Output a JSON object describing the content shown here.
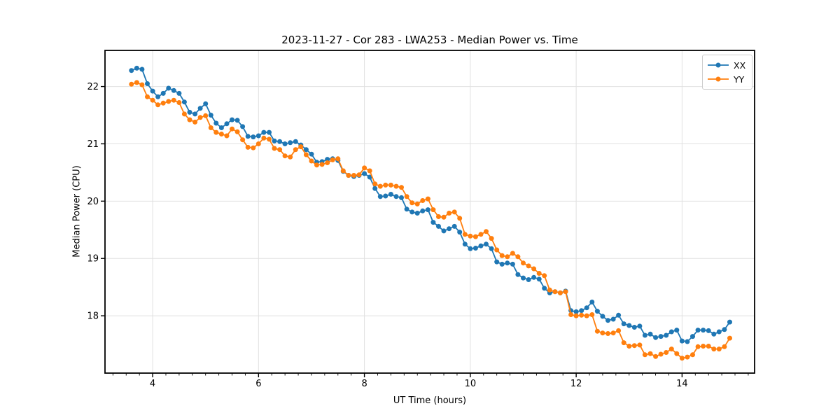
{
  "chart_data": {
    "type": "line",
    "title": "2023-11-27 - Cor 283 - LWA253 - Median Power vs. Time",
    "xlabel": "UT Time (hours)",
    "ylabel": "Median Power (CPU)",
    "xlim": [
      3.1,
      15.37
    ],
    "ylim": [
      17.0,
      22.63
    ],
    "xticks": [
      4,
      6,
      8,
      10,
      12,
      14
    ],
    "yticks": [
      18,
      19,
      20,
      21,
      22
    ],
    "x_minor_tick_interval": 0.25,
    "grid": true,
    "legend_position": "upper right",
    "x": [
      3.6,
      3.7,
      3.8,
      3.9,
      4.0,
      4.1,
      4.2,
      4.3,
      4.4,
      4.5,
      4.6,
      4.7,
      4.8,
      4.9,
      5.0,
      5.1,
      5.2,
      5.3,
      5.4,
      5.5,
      5.6,
      5.7,
      5.8,
      5.9,
      6.0,
      6.1,
      6.2,
      6.3,
      6.4,
      6.5,
      6.6,
      6.7,
      6.8,
      6.9,
      7.0,
      7.1,
      7.2,
      7.3,
      7.4,
      7.5,
      7.6,
      7.7,
      7.8,
      7.9,
      8.0,
      8.1,
      8.2,
      8.3,
      8.4,
      8.5,
      8.6,
      8.7,
      8.8,
      8.9,
      9.0,
      9.1,
      9.2,
      9.3,
      9.4,
      9.5,
      9.6,
      9.7,
      9.8,
      9.9,
      10.0,
      10.1,
      10.2,
      10.3,
      10.4,
      10.5,
      10.6,
      10.7,
      10.8,
      10.9,
      11.0,
      11.1,
      11.2,
      11.3,
      11.4,
      11.5,
      11.6,
      11.7,
      11.8,
      11.9,
      12.0,
      12.1,
      12.2,
      12.3,
      12.4,
      12.5,
      12.6,
      12.7,
      12.8,
      12.9,
      13.0,
      13.1,
      13.2,
      13.3,
      13.4,
      13.5,
      13.6,
      13.7,
      13.8,
      13.9,
      14.0,
      14.1,
      14.2,
      14.3,
      14.4,
      14.5,
      14.6,
      14.7,
      14.8,
      14.9
    ],
    "series": [
      {
        "name": "XX",
        "color": "#1f77b4",
        "values": [
          22.28,
          22.32,
          22.3,
          22.05,
          21.92,
          21.82,
          21.88,
          21.97,
          21.93,
          21.88,
          21.73,
          21.55,
          21.52,
          21.62,
          21.7,
          21.5,
          21.36,
          21.28,
          21.35,
          21.42,
          21.41,
          21.3,
          21.13,
          21.12,
          21.14,
          21.2,
          21.2,
          21.05,
          21.04,
          21.0,
          21.02,
          21.04,
          20.98,
          20.9,
          20.82,
          20.68,
          20.69,
          20.73,
          20.74,
          20.71,
          20.52,
          20.45,
          20.43,
          20.45,
          20.48,
          20.42,
          20.22,
          20.08,
          20.09,
          20.12,
          20.08,
          20.06,
          19.86,
          19.81,
          19.79,
          19.83,
          19.85,
          19.63,
          19.56,
          19.48,
          19.52,
          19.56,
          19.46,
          19.25,
          19.17,
          19.18,
          19.22,
          19.25,
          19.17,
          18.94,
          18.9,
          18.92,
          18.9,
          18.72,
          18.66,
          18.63,
          18.67,
          18.64,
          18.48,
          18.4,
          18.42,
          18.4,
          18.43,
          18.09,
          18.07,
          18.09,
          18.14,
          18.24,
          18.08,
          17.99,
          17.92,
          17.94,
          18.01,
          17.86,
          17.83,
          17.8,
          17.82,
          17.66,
          17.68,
          17.62,
          17.64,
          17.66,
          17.72,
          17.75,
          17.56,
          17.55,
          17.64,
          17.75,
          17.75,
          17.74,
          17.68,
          17.72,
          17.76,
          17.89
        ]
      },
      {
        "name": "YY",
        "color": "#ff7f0e",
        "values": [
          22.04,
          22.07,
          22.03,
          21.82,
          21.76,
          21.68,
          21.71,
          21.74,
          21.76,
          21.72,
          21.52,
          21.42,
          21.38,
          21.46,
          21.49,
          21.28,
          21.2,
          21.17,
          21.14,
          21.26,
          21.21,
          21.07,
          20.94,
          20.93,
          21.0,
          21.1,
          21.08,
          20.92,
          20.9,
          20.79,
          20.77,
          20.9,
          20.95,
          20.81,
          20.7,
          20.63,
          20.64,
          20.67,
          20.72,
          20.74,
          20.53,
          20.45,
          20.45,
          20.46,
          20.58,
          20.53,
          20.3,
          20.26,
          20.28,
          20.28,
          20.26,
          20.24,
          20.08,
          19.97,
          19.95,
          20.01,
          20.04,
          19.85,
          19.73,
          19.72,
          19.79,
          19.81,
          19.7,
          19.42,
          19.39,
          19.38,
          19.42,
          19.47,
          19.35,
          19.15,
          19.05,
          19.03,
          19.09,
          19.03,
          18.92,
          18.87,
          18.82,
          18.74,
          18.7,
          18.45,
          18.42,
          18.4,
          18.42,
          18.02,
          18.0,
          18.01,
          18.0,
          18.02,
          17.73,
          17.7,
          17.69,
          17.7,
          17.74,
          17.53,
          17.47,
          17.48,
          17.49,
          17.32,
          17.34,
          17.29,
          17.33,
          17.36,
          17.42,
          17.34,
          17.26,
          17.28,
          17.32,
          17.46,
          17.47,
          17.47,
          17.42,
          17.42,
          17.46,
          17.61
        ]
      }
    ]
  }
}
